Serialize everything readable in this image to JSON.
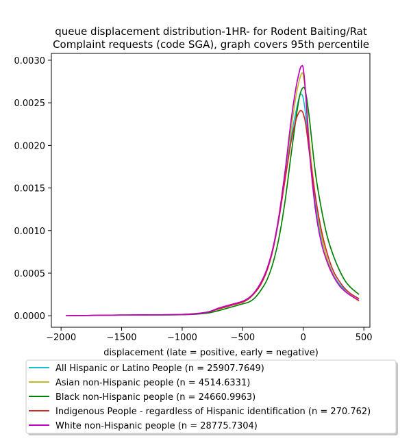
{
  "chart_data": {
    "type": "line",
    "title_lines": [
      "queue displacement distribution-1HR-  for Rodent Baiting/Rat",
      "Complaint  requests (code SGA), graph covers 95th percentile"
    ],
    "xlabel": "displacement (late = positive, early = negative)",
    "ylabel": "",
    "xlim": [
      -2080,
      550
    ],
    "ylim": [
      -0.000135,
      0.00308
    ],
    "x_ticks": [
      -2000,
      -1500,
      -1000,
      -500,
      0,
      500
    ],
    "x_tick_labels": [
      "−2000",
      "−1500",
      "−1000",
      "−500",
      "0",
      "500"
    ],
    "y_ticks": [
      0.0,
      0.0005,
      0.001,
      0.0015,
      0.002,
      0.0025,
      0.003
    ],
    "y_tick_labels": [
      "0.0000",
      "0.0005",
      "0.0010",
      "0.0015",
      "0.0020",
      "0.0025",
      "0.0030"
    ],
    "grid": false,
    "legend_position": "below plot",
    "series": [
      {
        "name": "All Hispanic or Latino People (n = 25907.7649)",
        "color": "#17becf",
        "points": [
          [
            -1960,
            0
          ],
          [
            -1500,
            8e-06
          ],
          [
            -1000,
            1.5e-05
          ],
          [
            -800,
            4e-05
          ],
          [
            -700,
            8e-05
          ],
          [
            -600,
            0.00012
          ],
          [
            -500,
            0.00016
          ],
          [
            -450,
            0.0002
          ],
          [
            -400,
            0.00027
          ],
          [
            -350,
            0.00037
          ],
          [
            -300,
            0.00053
          ],
          [
            -250,
            0.00078
          ],
          [
            -200,
            0.00115
          ],
          [
            -150,
            0.00163
          ],
          [
            -100,
            0.0021
          ],
          [
            -60,
            0.0024
          ],
          [
            -30,
            0.00258
          ],
          [
            -15,
            0.0026
          ],
          [
            0,
            0.00255
          ],
          [
            20,
            0.00235
          ],
          [
            50,
            0.00192
          ],
          [
            100,
            0.00133
          ],
          [
            150,
            0.00092
          ],
          [
            200,
            0.00066
          ],
          [
            250,
            0.00048
          ],
          [
            300,
            0.00037
          ],
          [
            350,
            0.0003
          ],
          [
            400,
            0.00025
          ],
          [
            460,
            0.0002
          ]
        ]
      },
      {
        "name": "Asian non-Hispanic people (n = 4514.6331)",
        "color": "#bcbd22",
        "points": [
          [
            -1960,
            0
          ],
          [
            -1500,
            8e-06
          ],
          [
            -1000,
            1.5e-05
          ],
          [
            -800,
            4e-05
          ],
          [
            -700,
            8e-05
          ],
          [
            -600,
            0.00012
          ],
          [
            -500,
            0.00016
          ],
          [
            -450,
            0.0002
          ],
          [
            -400,
            0.00027
          ],
          [
            -350,
            0.00037
          ],
          [
            -300,
            0.00053
          ],
          [
            -250,
            0.00078
          ],
          [
            -200,
            0.00118
          ],
          [
            -150,
            0.0017
          ],
          [
            -100,
            0.0022
          ],
          [
            -60,
            0.00258
          ],
          [
            -30,
            0.00278
          ],
          [
            -10,
            0.00285
          ],
          [
            0,
            0.00282
          ],
          [
            20,
            0.0026
          ],
          [
            50,
            0.00205
          ],
          [
            100,
            0.0014
          ],
          [
            150,
            0.00095
          ],
          [
            200,
            0.00065
          ],
          [
            250,
            0.00047
          ],
          [
            300,
            0.00035
          ],
          [
            350,
            0.00028
          ],
          [
            400,
            0.00023
          ],
          [
            460,
            0.00017
          ]
        ]
      },
      {
        "name": "Black non-Hispanic people (n = 24660.9963)",
        "color": "#008000",
        "points": [
          [
            -1960,
            0
          ],
          [
            -1500,
            8e-06
          ],
          [
            -1000,
            1.2e-05
          ],
          [
            -800,
            3e-05
          ],
          [
            -700,
            6e-05
          ],
          [
            -600,
            0.0001
          ],
          [
            -500,
            0.00014
          ],
          [
            -450,
            0.00016
          ],
          [
            -400,
            0.00021
          ],
          [
            -350,
            0.0003
          ],
          [
            -300,
            0.00042
          ],
          [
            -250,
            0.00062
          ],
          [
            -200,
            0.00092
          ],
          [
            -150,
            0.00135
          ],
          [
            -100,
            0.0019
          ],
          [
            -60,
            0.00232
          ],
          [
            -30,
            0.00258
          ],
          [
            0,
            0.00268
          ],
          [
            20,
            0.00262
          ],
          [
            50,
            0.00232
          ],
          [
            100,
            0.00168
          ],
          [
            150,
            0.00125
          ],
          [
            200,
            0.00092
          ],
          [
            250,
            0.0007
          ],
          [
            300,
            0.00053
          ],
          [
            350,
            0.0004
          ],
          [
            400,
            0.00032
          ],
          [
            460,
            0.00025
          ]
        ]
      },
      {
        "name": "Indigenous People - regardless of Hispanic identification (n = 270.762)",
        "color": "#d62728",
        "points": [
          [
            -1960,
            0
          ],
          [
            -1500,
            8e-06
          ],
          [
            -1000,
            1.5e-05
          ],
          [
            -800,
            4e-05
          ],
          [
            -700,
            8e-05
          ],
          [
            -600,
            0.00012
          ],
          [
            -500,
            0.00016
          ],
          [
            -450,
            0.0002
          ],
          [
            -400,
            0.00027
          ],
          [
            -350,
            0.00037
          ],
          [
            -300,
            0.00053
          ],
          [
            -250,
            0.00078
          ],
          [
            -200,
            0.00115
          ],
          [
            -150,
            0.0016
          ],
          [
            -100,
            0.00205
          ],
          [
            -60,
            0.0023
          ],
          [
            -30,
            0.0024
          ],
          [
            -10,
            0.0024
          ],
          [
            0,
            0.00237
          ],
          [
            20,
            0.00225
          ],
          [
            50,
            0.00192
          ],
          [
            100,
            0.0014
          ],
          [
            150,
            0.001
          ],
          [
            200,
            0.00072
          ],
          [
            250,
            0.00052
          ],
          [
            300,
            0.0004
          ],
          [
            350,
            0.00031
          ],
          [
            400,
            0.00025
          ],
          [
            460,
            0.0002
          ]
        ]
      },
      {
        "name": "White non-Hispanic people (n = 28775.7304)",
        "color": "#bf00bf",
        "points": [
          [
            -1960,
            0
          ],
          [
            -1500,
            8e-06
          ],
          [
            -1000,
            1.5e-05
          ],
          [
            -800,
            4e-05
          ],
          [
            -700,
            9e-05
          ],
          [
            -600,
            0.00013
          ],
          [
            -500,
            0.00017
          ],
          [
            -450,
            0.00021
          ],
          [
            -400,
            0.00028
          ],
          [
            -350,
            0.00039
          ],
          [
            -300,
            0.00055
          ],
          [
            -250,
            0.0008
          ],
          [
            -200,
            0.00118
          ],
          [
            -150,
            0.0017
          ],
          [
            -100,
            0.0023
          ],
          [
            -60,
            0.00268
          ],
          [
            -30,
            0.00288
          ],
          [
            -15,
            0.00293
          ],
          [
            0,
            0.0029
          ],
          [
            20,
            0.0026
          ],
          [
            50,
            0.00195
          ],
          [
            100,
            0.00125
          ],
          [
            150,
            0.00085
          ],
          [
            200,
            0.00062
          ],
          [
            250,
            0.00046
          ],
          [
            300,
            0.00035
          ],
          [
            350,
            0.00028
          ],
          [
            400,
            0.00023
          ],
          [
            460,
            0.00018
          ]
        ]
      }
    ]
  }
}
